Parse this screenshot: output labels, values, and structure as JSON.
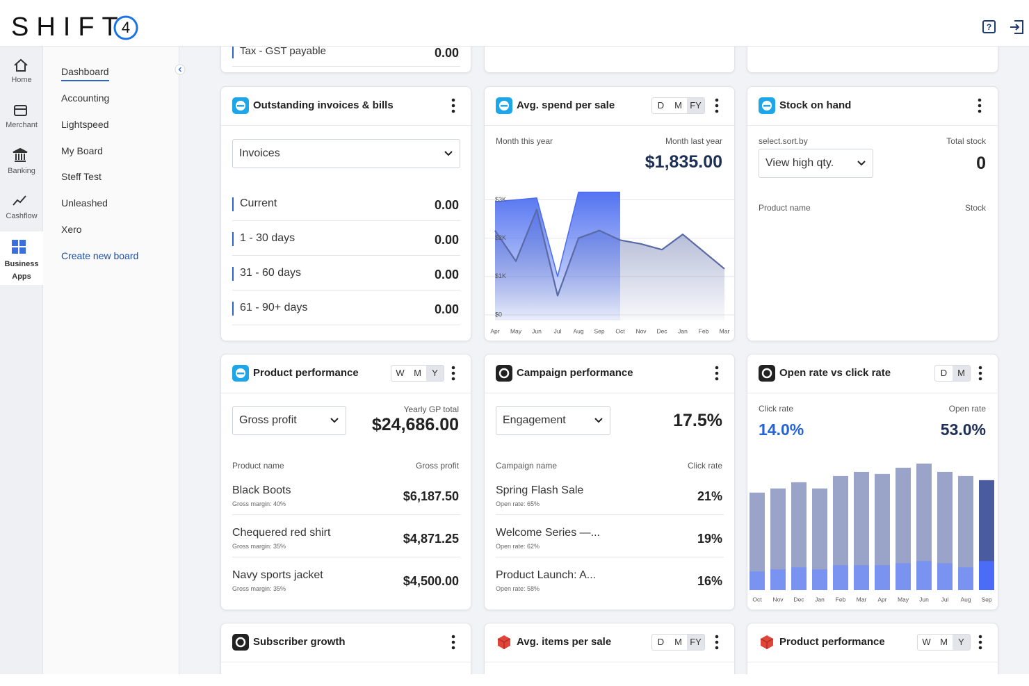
{
  "header": {
    "logo": "SHIFT",
    "logo_mark": "4"
  },
  "nav": [
    "Home",
    "Merchant",
    "Banking",
    "Cashflow",
    "Business Apps"
  ],
  "sidebar": [
    "Dashboard",
    "Accounting",
    "Lightspeed",
    "My Board",
    "Steff Test",
    "Unleashed",
    "Xero",
    "Create new board"
  ],
  "tax_card": {
    "label": "Tax - GST payable",
    "value": "0.00"
  },
  "outstanding": {
    "title": "Outstanding invoices & bills",
    "select": "Invoices",
    "rows": [
      [
        "Current",
        "0.00"
      ],
      [
        "1 - 30 days",
        "0.00"
      ],
      [
        "31 - 60 days",
        "0.00"
      ],
      [
        "61 - 90+ days",
        "0.00"
      ]
    ]
  },
  "avg_spend": {
    "title": "Avg. spend per sale",
    "periods": [
      "D",
      "M",
      "FY"
    ],
    "value": "$1,835.00",
    "chart": {
      "type": "area",
      "categories": [
        "Apr",
        "May",
        "Jun",
        "Jul",
        "Aug",
        "Sep",
        "Oct",
        "Nov",
        "Dec",
        "Jan",
        "Feb",
        "Mar"
      ],
      "ylim": [
        0,
        3300
      ],
      "yticks": [
        {
          "value": 0,
          "label": "$0"
        },
        {
          "value": 1000,
          "label": "$1K"
        },
        {
          "value": 2000,
          "label": "$2K"
        },
        {
          "value": 3000,
          "label": "$3K"
        }
      ],
      "grid": true,
      "series": [
        {
          "name": "Month this year",
          "color": "#4a6cf0",
          "values": [
            2950,
            3000,
            3050,
            1000,
            3200,
            3200,
            3200,
            null,
            null,
            null,
            null,
            null
          ]
        },
        {
          "name": "Month last year",
          "color": "#5a6aa6",
          "values": [
            2200,
            1400,
            2750,
            500,
            2000,
            2200,
            1950,
            1850,
            1700,
            2100,
            1650,
            1200
          ]
        }
      ]
    }
  },
  "stock": {
    "title": "Stock on hand",
    "sort_label": "select.sort.by",
    "total_label": "Total stock",
    "select": "View high qty.",
    "total": "0",
    "col_name": "Product name",
    "col_stock": "Stock"
  },
  "product_performance": {
    "title": "Product performance",
    "periods": [
      "W",
      "M",
      "Y"
    ],
    "select": "Gross profit",
    "total_label": "Yearly GP total",
    "total": "$24,686.00",
    "col_name": "Product name",
    "col_value": "Gross profit",
    "rows": [
      {
        "name": "Black Boots",
        "sub": "Gross margin:  40%",
        "value": "$6,187.50"
      },
      {
        "name": "Chequered red shirt",
        "sub": "Gross margin:  35%",
        "value": "$4,871.25"
      },
      {
        "name": "Navy sports jacket",
        "sub": "Gross margin:  35%",
        "value": "$4,500.00"
      }
    ]
  },
  "campaign": {
    "title": "Campaign performance",
    "select": "Engagement",
    "value": "17.5%",
    "col_name": "Campaign name",
    "col_value": "Click rate",
    "rows": [
      {
        "name": "Spring Flash Sale",
        "sub": "Open rate:  65%",
        "value": "21%"
      },
      {
        "name": "Welcome Series —...",
        "sub": "Open rate:  62%",
        "value": "19%"
      },
      {
        "name": "Product Launch: A...",
        "sub": "Open rate:  58%",
        "value": "16%"
      }
    ]
  },
  "open_click": {
    "title": "Open rate vs click rate",
    "periods": [
      "D",
      "M"
    ],
    "click_value": "14.0%",
    "open_value": "53.0%",
    "chart": {
      "type": "bar",
      "categories": [
        "Oct",
        "Nov",
        "Dec",
        "Jan",
        "Feb",
        "Mar",
        "Apr",
        "May",
        "Jun",
        "Jul",
        "Aug",
        "Sep"
      ],
      "ylim": [
        0,
        62
      ],
      "highlight_last": true,
      "series": [
        {
          "name": "Open rate",
          "color": "#9aa3c8",
          "highlight_color": "#4b5b9f",
          "values": [
            47,
            49,
            52,
            49,
            55,
            57,
            56,
            59,
            61,
            57,
            55,
            53
          ]
        },
        {
          "name": "Click rate",
          "color": "#7b93f0",
          "highlight_color": "#4a6cf7",
          "values": [
            9,
            10,
            11,
            10,
            12,
            12,
            12,
            13,
            14,
            13,
            11,
            14
          ]
        }
      ]
    }
  },
  "subscriber": {
    "title": "Subscriber growth"
  },
  "avg_items": {
    "title": "Avg. items per sale",
    "periods": [
      "D",
      "M",
      "FY"
    ]
  },
  "product_performance_2": {
    "title": "Product performance",
    "periods": [
      "W",
      "M",
      "Y"
    ]
  }
}
